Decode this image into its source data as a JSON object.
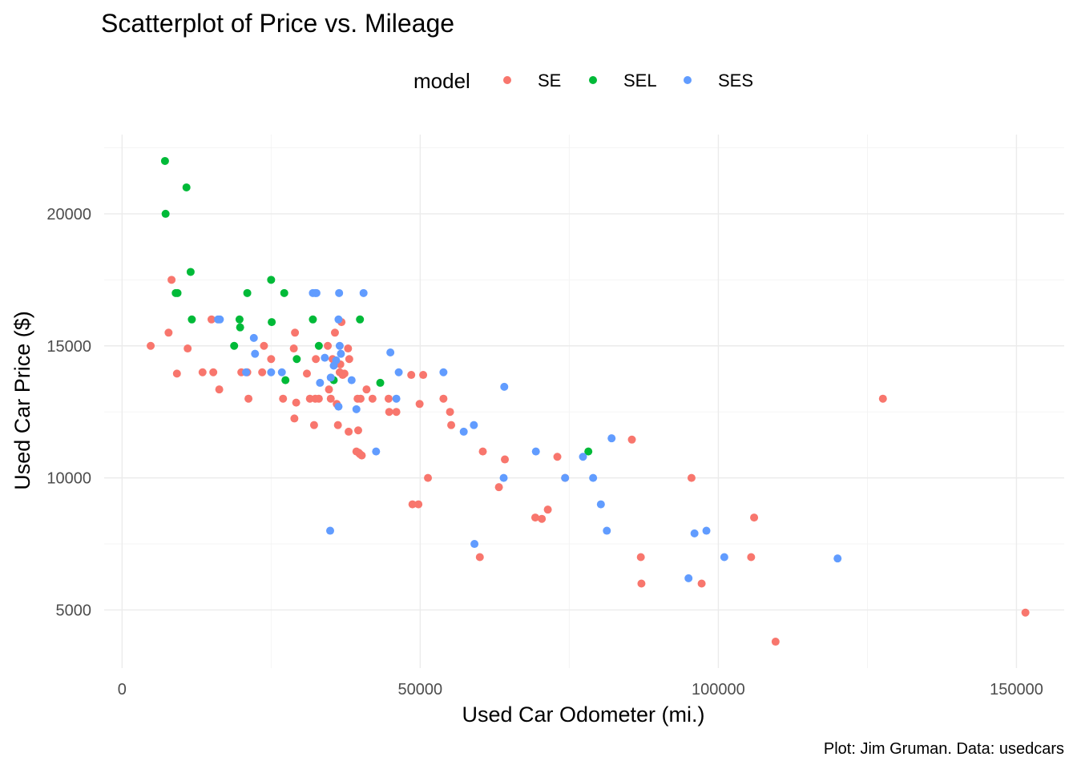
{
  "chart_data": {
    "type": "scatter",
    "title": "Scatterplot of Price vs. Mileage",
    "xlabel": "Used Car Odometer (mi.)",
    "ylabel": "Used Car Price ($)",
    "caption": "Plot: Jim Gruman. Data: usedcars",
    "legend": {
      "title": "model",
      "placement": "top",
      "items": [
        {
          "name": "SE",
          "color": "#F8766D"
        },
        {
          "name": "SEL",
          "color": "#00BA38"
        },
        {
          "name": "SES",
          "color": "#619CFF"
        }
      ]
    },
    "xlim": [
      -3000,
      158000
    ],
    "ylim": [
      2800,
      23000
    ],
    "xticks": [
      {
        "value": 0,
        "label": "0"
      },
      {
        "value": 50000,
        "label": "50000"
      },
      {
        "value": 100000,
        "label": "100000"
      },
      {
        "value": 150000,
        "label": "150000"
      }
    ],
    "yticks": [
      {
        "value": 5000,
        "label": "5000"
      },
      {
        "value": 10000,
        "label": "10000"
      },
      {
        "value": 15000,
        "label": "15000"
      },
      {
        "value": 20000,
        "label": "20000"
      }
    ],
    "grid": true,
    "series": [
      {
        "name": "SE",
        "color": "#F8766D",
        "points": [
          [
            4800,
            15000
          ],
          [
            7800,
            15500
          ],
          [
            8300,
            17500
          ],
          [
            9200,
            13950
          ],
          [
            11000,
            14900
          ],
          [
            13500,
            14000
          ],
          [
            15000,
            16000
          ],
          [
            15300,
            14000
          ],
          [
            16300,
            13350
          ],
          [
            20000,
            14000
          ],
          [
            21000,
            14000
          ],
          [
            21200,
            13000
          ],
          [
            23500,
            14000
          ],
          [
            23800,
            15000
          ],
          [
            25000,
            14500
          ],
          [
            27000,
            13000
          ],
          [
            28800,
            14900
          ],
          [
            28900,
            12250
          ],
          [
            29000,
            15500
          ],
          [
            29200,
            12850
          ],
          [
            31000,
            13950
          ],
          [
            31500,
            13000
          ],
          [
            32200,
            12000
          ],
          [
            32400,
            13000
          ],
          [
            32500,
            14500
          ],
          [
            33000,
            13000
          ],
          [
            34500,
            15000
          ],
          [
            34700,
            13350
          ],
          [
            35000,
            13000
          ],
          [
            35300,
            14500
          ],
          [
            35700,
            15500
          ],
          [
            36000,
            12800
          ],
          [
            36200,
            12000
          ],
          [
            36500,
            14000
          ],
          [
            36600,
            14300
          ],
          [
            36800,
            15900
          ],
          [
            37000,
            13900
          ],
          [
            37300,
            13950
          ],
          [
            37900,
            14900
          ],
          [
            38000,
            11750
          ],
          [
            38100,
            14500
          ],
          [
            39300,
            11000
          ],
          [
            39500,
            13000
          ],
          [
            39600,
            11800
          ],
          [
            39700,
            10950
          ],
          [
            39900,
            10900
          ],
          [
            40000,
            13000
          ],
          [
            40200,
            10850
          ],
          [
            41000,
            13350
          ],
          [
            42000,
            13000
          ],
          [
            44700,
            13000
          ],
          [
            44800,
            12500
          ],
          [
            46000,
            12500
          ],
          [
            48500,
            13900
          ],
          [
            48700,
            9000
          ],
          [
            49700,
            9000
          ],
          [
            49900,
            12800
          ],
          [
            50500,
            13900
          ],
          [
            51300,
            10000
          ],
          [
            53900,
            13000
          ],
          [
            55000,
            12500
          ],
          [
            55200,
            12000
          ],
          [
            60000,
            7000
          ],
          [
            60500,
            11000
          ],
          [
            63200,
            9650
          ],
          [
            64200,
            10700
          ],
          [
            69300,
            8500
          ],
          [
            70400,
            8450
          ],
          [
            71400,
            8800
          ],
          [
            73000,
            10800
          ],
          [
            74300,
            10000
          ],
          [
            87000,
            7000
          ],
          [
            87100,
            6000
          ],
          [
            85500,
            11450
          ],
          [
            95500,
            10000
          ],
          [
            97200,
            6000
          ],
          [
            105500,
            7000
          ],
          [
            106000,
            8500
          ],
          [
            109600,
            3800
          ],
          [
            127600,
            13000
          ],
          [
            151500,
            4900
          ]
        ]
      },
      {
        "name": "SEL",
        "color": "#00BA38",
        "points": [
          [
            7200,
            22000
          ],
          [
            7300,
            20000
          ],
          [
            9000,
            17000
          ],
          [
            9300,
            17000
          ],
          [
            10800,
            21000
          ],
          [
            11500,
            17800
          ],
          [
            11700,
            16000
          ],
          [
            18800,
            15000
          ],
          [
            19700,
            16000
          ],
          [
            19800,
            15700
          ],
          [
            21000,
            17000
          ],
          [
            25000,
            17500
          ],
          [
            25100,
            15900
          ],
          [
            27200,
            17000
          ],
          [
            27400,
            13700
          ],
          [
            29300,
            14500
          ],
          [
            32000,
            16000
          ],
          [
            33000,
            15000
          ],
          [
            35500,
            13700
          ],
          [
            39900,
            16000
          ],
          [
            43300,
            13600
          ],
          [
            78200,
            11000
          ]
        ]
      },
      {
        "name": "SES",
        "color": "#619CFF",
        "points": [
          [
            16100,
            16000
          ],
          [
            16400,
            16000
          ],
          [
            20800,
            14000
          ],
          [
            22100,
            15300
          ],
          [
            22300,
            14700
          ],
          [
            25000,
            14000
          ],
          [
            26800,
            14000
          ],
          [
            32000,
            17000
          ],
          [
            32400,
            17000
          ],
          [
            32600,
            17000
          ],
          [
            33200,
            13600
          ],
          [
            34000,
            14550
          ],
          [
            34900,
            8000
          ],
          [
            35000,
            13800
          ],
          [
            35500,
            14250
          ],
          [
            35900,
            14450
          ],
          [
            36300,
            12700
          ],
          [
            36300,
            16000
          ],
          [
            36400,
            17000
          ],
          [
            36500,
            15000
          ],
          [
            36700,
            14700
          ],
          [
            38500,
            13700
          ],
          [
            39300,
            12600
          ],
          [
            40500,
            17000
          ],
          [
            42600,
            11000
          ],
          [
            45000,
            14750
          ],
          [
            46000,
            13000
          ],
          [
            46400,
            14000
          ],
          [
            53900,
            14000
          ],
          [
            57300,
            11750
          ],
          [
            59000,
            12000
          ],
          [
            59100,
            7500
          ],
          [
            64000,
            10000
          ],
          [
            64100,
            13450
          ],
          [
            69400,
            11000
          ],
          [
            74300,
            10000
          ],
          [
            77300,
            10800
          ],
          [
            79000,
            10000
          ],
          [
            80300,
            9000
          ],
          [
            81300,
            8000
          ],
          [
            82100,
            11500
          ],
          [
            95000,
            6200
          ],
          [
            96000,
            7900
          ],
          [
            98000,
            8000
          ],
          [
            101000,
            7000
          ],
          [
            120000,
            6950
          ]
        ]
      }
    ]
  }
}
